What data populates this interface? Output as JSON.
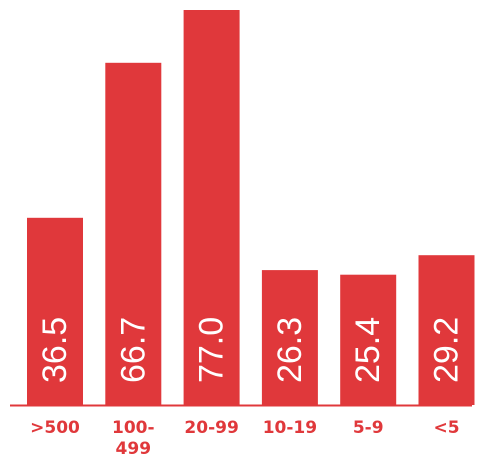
{
  "chart_data": {
    "type": "bar",
    "categories": [
      ">500",
      "100-499",
      "20-99",
      "10-19",
      "5-9",
      "<5"
    ],
    "category_label_lines": [
      [
        ">500"
      ],
      [
        "100-",
        "499"
      ],
      [
        "20-99"
      ],
      [
        "10-19"
      ],
      [
        "5-9"
      ],
      [
        "<5"
      ]
    ],
    "values": [
      36.5,
      66.7,
      77.0,
      26.3,
      25.4,
      29.2
    ],
    "value_labels": [
      "36.5",
      "66.7",
      "77.0",
      "26.3",
      "25.4",
      "29.2"
    ],
    "ylim": [
      0,
      77.0
    ],
    "grid": false,
    "orientation": "vertical",
    "value_label_rotation": "rotated-90-inside-bar",
    "colors": {
      "bar": "#e0383b",
      "axis": "#e0383b",
      "tick_label": "#e0383b",
      "value_label": "#ffffff"
    }
  }
}
